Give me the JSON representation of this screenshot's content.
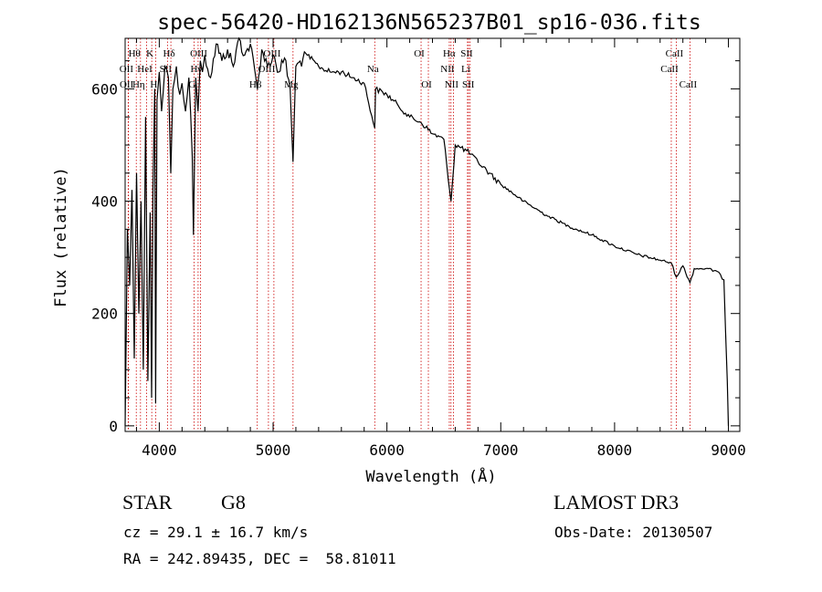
{
  "chart_data": {
    "type": "line",
    "title": "spec-56420-HD162136N565237B01_sp16-036.fits",
    "xlabel": "Wavelength (Å)",
    "ylabel": "Flux (relative)",
    "xlim": [
      3700,
      9100
    ],
    "ylim": [
      -10,
      690
    ],
    "xticks": [
      4000,
      5000,
      6000,
      7000,
      8000,
      9000
    ],
    "xtick_labels": [
      "4000",
      "5000",
      "6000",
      "7000",
      "8000",
      "9000"
    ],
    "yticks": [
      0,
      200,
      400,
      600
    ],
    "ytick_labels": [
      "0",
      "200",
      "400",
      "600"
    ],
    "series": [
      {
        "name": "flux",
        "x": [
          3700,
          3720,
          3740,
          3760,
          3780,
          3800,
          3820,
          3840,
          3860,
          3880,
          3900,
          3920,
          3933,
          3945,
          3960,
          3968,
          3980,
          4000,
          4020,
          4050,
          4080,
          4101,
          4120,
          4150,
          4180,
          4200,
          4230,
          4260,
          4290,
          4300,
          4320,
          4340,
          4360,
          4380,
          4400,
          4450,
          4500,
          4550,
          4600,
          4650,
          4700,
          4750,
          4800,
          4861,
          4900,
          4950,
          5000,
          5050,
          5100,
          5150,
          5175,
          5200,
          5300,
          5400,
          5500,
          5600,
          5700,
          5800,
          5893,
          5900,
          6000,
          6100,
          6200,
          6300,
          6400,
          6500,
          6563,
          6600,
          6700,
          6800,
          6900,
          7000,
          7200,
          7400,
          7600,
          7800,
          8000,
          8200,
          8400,
          8498,
          8542,
          8600,
          8662,
          8700,
          8800,
          8900,
          8960,
          8990,
          9000
        ],
        "y": [
          0,
          350,
          250,
          420,
          120,
          450,
          200,
          400,
          100,
          550,
          80,
          380,
          50,
          420,
          600,
          40,
          580,
          630,
          560,
          640,
          620,
          450,
          600,
          640,
          590,
          610,
          560,
          620,
          480,
          340,
          620,
          560,
          650,
          630,
          660,
          620,
          680,
          650,
          670,
          640,
          690,
          660,
          680,
          600,
          670,
          640,
          660,
          630,
          655,
          600,
          470,
          640,
          660,
          640,
          630,
          630,
          620,
          610,
          530,
          600,
          590,
          570,
          550,
          540,
          520,
          510,
          400,
          500,
          490,
          470,
          450,
          430,
          400,
          375,
          355,
          340,
          320,
          305,
          295,
          290,
          265,
          285,
          255,
          280,
          280,
          275,
          260,
          80,
          0
        ]
      }
    ],
    "line_markers": [
      {
        "label": "Hθ",
        "wavelength": 3798,
        "row": 1
      },
      {
        "label": "OII",
        "wavelength": 3727,
        "row": 2
      },
      {
        "label": "OII",
        "wavelength": 3729,
        "row": 3
      },
      {
        "label": "HeI",
        "wavelength": 3889,
        "row": 2
      },
      {
        "label": "Hη",
        "wavelength": 3835,
        "row": 3
      },
      {
        "label": "K",
        "wavelength": 3934,
        "row": 1
      },
      {
        "label": "SII",
        "wavelength": 4072,
        "row": 2
      },
      {
        "label": "H",
        "wavelength": 3968,
        "row": 3
      },
      {
        "label": "Hδ",
        "wavelength": 4102,
        "row": 1
      },
      {
        "label": "OIII",
        "wavelength": 4363,
        "row": 1
      },
      {
        "label": "Hγ",
        "wavelength": 4341,
        "row": 2
      },
      {
        "label": "G",
        "wavelength": 4305,
        "row": 3
      },
      {
        "label": "OIII",
        "wavelength": 5007,
        "row": 1
      },
      {
        "label": "OIII",
        "wavelength": 4959,
        "row": 2
      },
      {
        "label": "Hβ",
        "wavelength": 4861,
        "row": 3
      },
      {
        "label": "Mg",
        "wavelength": 5175,
        "row": 3
      },
      {
        "label": "Na",
        "wavelength": 5893,
        "row": 2
      },
      {
        "label": "OI",
        "wavelength": 6300,
        "row": 1
      },
      {
        "label": "OI",
        "wavelength": 6364,
        "row": 3
      },
      {
        "label": "Hα",
        "wavelength": 6563,
        "row": 1
      },
      {
        "label": "SII",
        "wavelength": 6717,
        "row": 1
      },
      {
        "label": "NII",
        "wavelength": 6548,
        "row": 2
      },
      {
        "label": "Li",
        "wavelength": 6708,
        "row": 2
      },
      {
        "label": "NII",
        "wavelength": 6584,
        "row": 3
      },
      {
        "label": "SII",
        "wavelength": 6731,
        "row": 3
      },
      {
        "label": "CaII",
        "wavelength": 8542,
        "row": 1
      },
      {
        "label": "CaII",
        "wavelength": 8498,
        "row": 2
      },
      {
        "label": "CaII",
        "wavelength": 8662,
        "row": 3
      }
    ],
    "line_color": "#000000",
    "marker_color": "#cc0000"
  },
  "footer": {
    "object_type": "STAR",
    "subclass": "G8",
    "survey": "LAMOST DR3",
    "redshift": "cz = 29.1 ± 16.7 km/s",
    "obs_date": "Obs-Date: 20130507",
    "coords": "RA = 242.89435, DEC =  58.81011"
  }
}
